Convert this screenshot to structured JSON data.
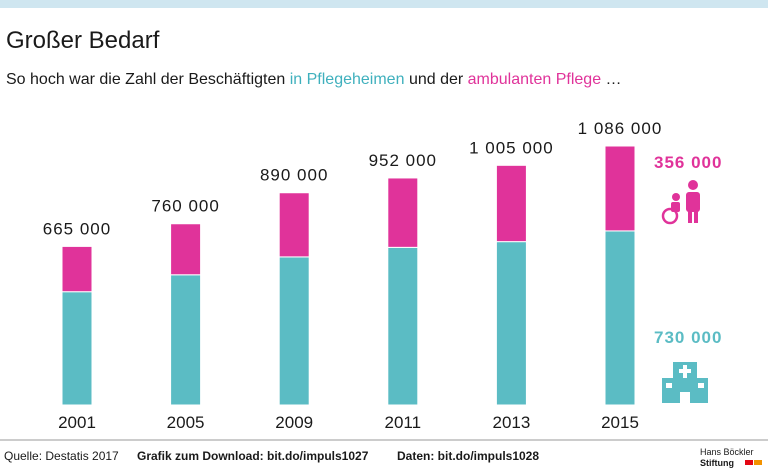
{
  "chart_data": {
    "type": "stacked-bar",
    "title": "Großer Bedarf",
    "subtitle": [
      "So hoch war die Zahl der Beschäftigten",
      "und der",
      "…"
    ],
    "categories": [
      "2001",
      "2005",
      "2009",
      "2011",
      "2013",
      "2015"
    ],
    "series": [
      {
        "name": "in Pflegeheimen",
        "color": "#5bbcc4",
        "values": [
          475000,
          546000,
          621000,
          661000,
          685000,
          730000
        ],
        "value_labels": [
          null,
          null,
          null,
          null,
          null,
          "730 000"
        ]
      },
      {
        "name": "ambulanten Pflege",
        "color": "#e0339a",
        "values": [
          190000,
          214000,
          269000,
          291000,
          320000,
          356000
        ],
        "value_labels": [
          null,
          null,
          null,
          null,
          null,
          "356 000"
        ]
      }
    ],
    "totals": [
      665000,
      760000,
      890000,
      952000,
      1005000,
      1086000
    ],
    "total_labels": [
      "665 000",
      "760 000",
      "890 000",
      "952 000",
      "1 005 000",
      "1 086 000"
    ]
  },
  "footer": {
    "source": "Quelle: Destatis 2017",
    "download": "Grafik zum Download: bit.do/impuls1027",
    "data": "Daten: bit.do/impuls1028",
    "logo_top": "Hans Böckler",
    "logo_bottom": "Stiftung"
  }
}
